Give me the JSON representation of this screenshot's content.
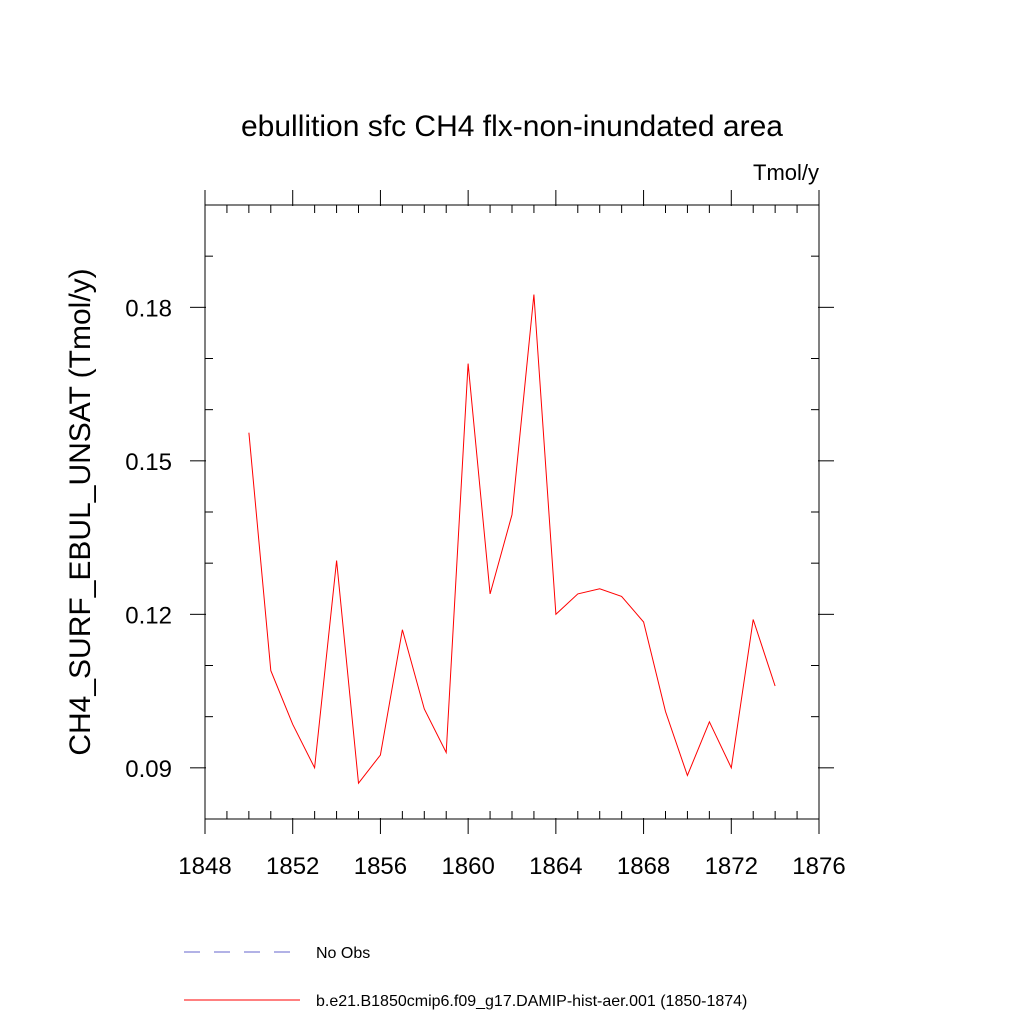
{
  "chart_data": {
    "type": "line",
    "title": "ebullition sfc CH4 flx-non-inundated area",
    "units": "Tmol/y",
    "ylabel": "CH4_SURF_EBUL_UNSAT  (Tmol/y)",
    "xlabel": "",
    "xlim": [
      1848,
      1876
    ],
    "ylim": [
      0.08,
      0.2
    ],
    "x_ticks": [
      1848,
      1852,
      1856,
      1860,
      1864,
      1868,
      1872,
      1876
    ],
    "x_tick_labels": [
      "1848",
      "1852",
      "1856",
      "1860",
      "1864",
      "1868",
      "1872",
      "1876"
    ],
    "y_ticks": [
      0.09,
      0.12,
      0.15,
      0.18
    ],
    "y_tick_labels": [
      "0.09",
      "0.12",
      "0.15",
      "0.18"
    ],
    "grid": false,
    "legend_position": "bottom",
    "legend": [
      {
        "label": "No Obs",
        "style": "dashed",
        "color": "#6666cc"
      },
      {
        "label": "b.e21.B1850cmip6.f09_g17.DAMIP-hist-aer.001 (1850-1874)",
        "style": "solid",
        "color": "#ff0000"
      }
    ],
    "series": [
      {
        "name": "b.e21.B1850cmip6.f09_g17.DAMIP-hist-aer.001 (1850-1874)",
        "color": "#ff0000",
        "x": [
          1850,
          1851,
          1852,
          1853,
          1854,
          1855,
          1856,
          1857,
          1858,
          1859,
          1860,
          1861,
          1862,
          1863,
          1864,
          1865,
          1866,
          1867,
          1868,
          1869,
          1870,
          1871,
          1872,
          1873,
          1874
        ],
        "values": [
          0.1555,
          0.109,
          0.0985,
          0.09,
          0.1305,
          0.087,
          0.0925,
          0.117,
          0.1015,
          0.093,
          0.169,
          0.124,
          0.1395,
          0.1825,
          0.12,
          0.124,
          0.125,
          0.1235,
          0.1185,
          0.101,
          0.0885,
          0.099,
          0.09,
          0.119,
          0.106
        ]
      }
    ]
  }
}
